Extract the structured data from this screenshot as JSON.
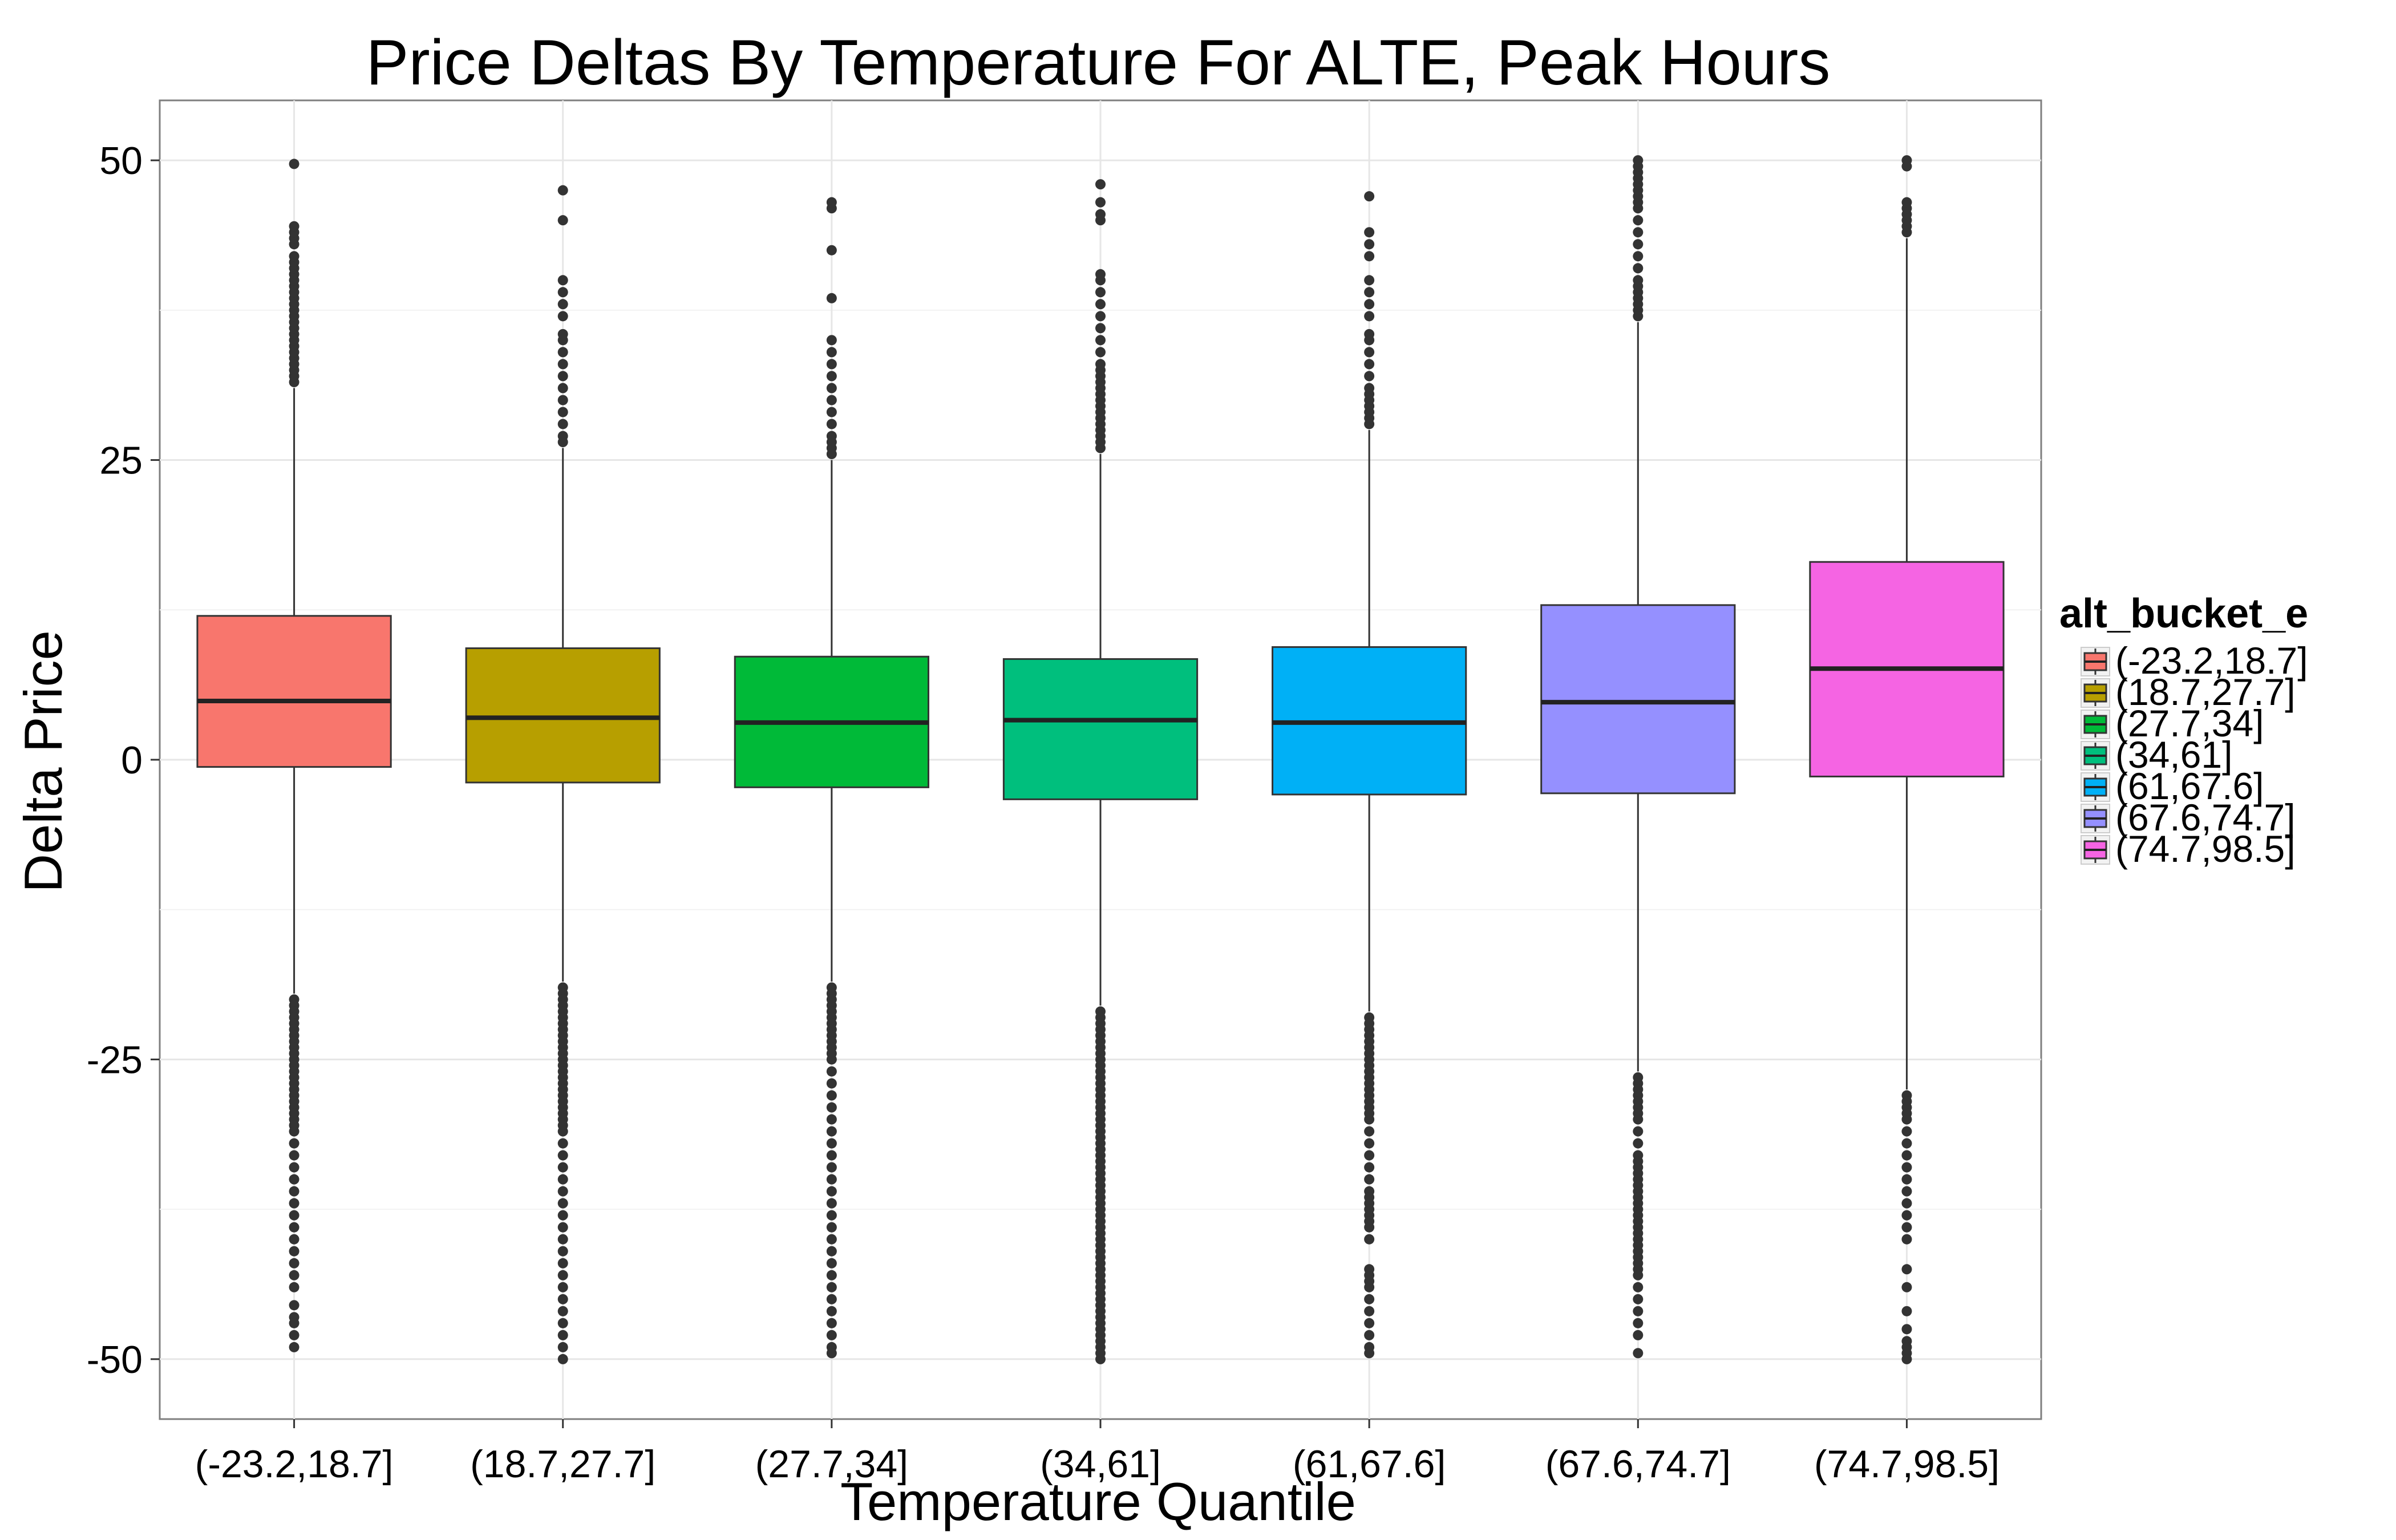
{
  "chart_data": {
    "type": "box",
    "title": "Price Deltas By Temperature For ALTE, Peak Hours",
    "xlabel": "Temperature Quantile",
    "ylabel": "Delta Price",
    "ylim": [
      -55,
      55
    ],
    "yticks": [
      50,
      25,
      0,
      -25,
      -50
    ],
    "grid": true,
    "legend": {
      "title": "alt_bucket_e",
      "position": "right"
    },
    "categories": [
      "(-23.2,18.7]",
      "(18.7,27.7]",
      "(27.7,34]",
      "(34,61]",
      "(61,67.6]",
      "(67.6,74.7]",
      "(74.7,98.5]"
    ],
    "colors": [
      "#F8766D",
      "#B79F00",
      "#00BA38",
      "#00BF7D",
      "#00B0F6",
      "#9590FF",
      "#F564E3"
    ],
    "boxes": [
      {
        "name": "(-23.2,18.7]",
        "whisker_low": -19.5,
        "q1": -0.6,
        "median": 4.9,
        "q3": 12.0,
        "whisker_high": 31.0,
        "outliers_high": [
          31.5,
          32,
          32.5,
          33,
          33.5,
          34,
          34.5,
          35,
          35.5,
          36,
          36.5,
          37,
          37.5,
          38,
          38.5,
          39,
          39.5,
          40,
          40.5,
          41,
          41.5,
          42,
          43,
          43.5,
          44,
          44.5,
          49.7
        ],
        "outliers_low": [
          -20,
          -20.5,
          -21,
          -21.5,
          -22,
          -22.5,
          -23,
          -23.5,
          -24,
          -24.5,
          -25,
          -25.5,
          -26,
          -26.5,
          -27,
          -27.5,
          -28,
          -28.5,
          -29,
          -29.5,
          -30,
          -30.5,
          -31,
          -32,
          -33,
          -34,
          -35,
          -36,
          -37,
          -38,
          -39,
          -40,
          -41,
          -42,
          -43,
          -44,
          -45.5,
          -46.5,
          -47,
          -48,
          -49
        ]
      },
      {
        "name": "(18.7,27.7]",
        "whisker_low": -18.5,
        "q1": -1.9,
        "median": 3.5,
        "q3": 9.3,
        "whisker_high": 26.0,
        "outliers_high": [
          26.5,
          27,
          28,
          29,
          30,
          31,
          32,
          33,
          34,
          35,
          35.5,
          37,
          38,
          39,
          40,
          45,
          47.5
        ],
        "outliers_low": [
          -19,
          -19.5,
          -20,
          -20.5,
          -21,
          -21.5,
          -22,
          -22.5,
          -23,
          -23.5,
          -24,
          -24.5,
          -25,
          -25.5,
          -26,
          -26.5,
          -27,
          -27.5,
          -28,
          -28.5,
          -29,
          -29.5,
          -30,
          -30.5,
          -31,
          -32,
          -33,
          -34,
          -35,
          -36,
          -37,
          -38,
          -39,
          -40,
          -41,
          -42,
          -43,
          -44,
          -45,
          -46,
          -47,
          -48,
          -49,
          -50
        ]
      },
      {
        "name": "(27.7,34]",
        "whisker_low": -18.5,
        "q1": -2.3,
        "median": 3.1,
        "q3": 8.6,
        "whisker_high": 25.0,
        "outliers_high": [
          25.5,
          26,
          26.5,
          27,
          28,
          29,
          30,
          31,
          32,
          33,
          34,
          35,
          38.5,
          42.5,
          46,
          46.5
        ],
        "outliers_low": [
          -19,
          -19.5,
          -20,
          -20.5,
          -21,
          -21.5,
          -22,
          -22.5,
          -23,
          -23.5,
          -24,
          -24.5,
          -25,
          -26,
          -27,
          -28,
          -29,
          -30,
          -31,
          -32,
          -33,
          -34,
          -35,
          -36,
          -37,
          -38,
          -39,
          -40,
          -41,
          -42,
          -43,
          -44,
          -45,
          -46,
          -47,
          -48,
          -49,
          -49.5
        ]
      },
      {
        "name": "(34,61]",
        "whisker_low": -20.5,
        "q1": -3.3,
        "median": 3.3,
        "q3": 8.4,
        "whisker_high": 25.5,
        "outliers_high": [
          26,
          26.5,
          27,
          27.5,
          28,
          28.5,
          29,
          29.5,
          30,
          30.5,
          31,
          31.5,
          32,
          32.5,
          33,
          34,
          35,
          36,
          37,
          38,
          39,
          40,
          40.5,
          45,
          45.5,
          46.5,
          48
        ],
        "outliers_low": [
          -21,
          -21.5,
          -22,
          -22.5,
          -23,
          -23.5,
          -24,
          -24.5,
          -25,
          -25.5,
          -26,
          -26.5,
          -27,
          -27.5,
          -28,
          -28.5,
          -29,
          -29.5,
          -30,
          -30.5,
          -31,
          -31.5,
          -32,
          -32.5,
          -33,
          -33.5,
          -34,
          -34.5,
          -35,
          -35.5,
          -36,
          -36.5,
          -37,
          -37.5,
          -38,
          -38.5,
          -39,
          -39.5,
          -40,
          -40.5,
          -41,
          -41.5,
          -42,
          -42.5,
          -43,
          -43.5,
          -44,
          -44.5,
          -45,
          -45.5,
          -46,
          -46.5,
          -47,
          -47.5,
          -48,
          -48.5,
          -49,
          -49.5,
          -50
        ]
      },
      {
        "name": "(61,67.6]",
        "whisker_low": -21.0,
        "q1": -2.9,
        "median": 3.1,
        "q3": 9.4,
        "whisker_high": 27.5,
        "outliers_high": [
          28,
          28.5,
          29,
          29.5,
          30,
          30.5,
          31,
          32,
          33,
          34,
          35,
          35.5,
          37,
          38,
          39,
          40,
          42,
          43,
          44,
          47
        ],
        "outliers_low": [
          -21.5,
          -22,
          -22.5,
          -23,
          -23.5,
          -24,
          -24.5,
          -25,
          -25.5,
          -26,
          -26.5,
          -27,
          -27.5,
          -28,
          -28.5,
          -29,
          -29.5,
          -30,
          -31,
          -32,
          -33,
          -34,
          -35,
          -36,
          -36.5,
          -37,
          -37.5,
          -38,
          -38.5,
          -39,
          -40,
          -42.5,
          -43,
          -43.5,
          -44,
          -45,
          -46,
          -47,
          -48,
          -49,
          -49.5
        ]
      },
      {
        "name": "(67.6,74.7]",
        "whisker_low": -26.0,
        "q1": -2.8,
        "median": 4.8,
        "q3": 12.9,
        "whisker_high": 36.5,
        "outliers_high": [
          37,
          37.5,
          38,
          38.5,
          39,
          39.5,
          40,
          41,
          42,
          43,
          44,
          45,
          46,
          46.5,
          47,
          47.5,
          48,
          48.5,
          49,
          49.5,
          50
        ],
        "outliers_low": [
          -26.5,
          -27,
          -27.5,
          -28,
          -28.5,
          -29,
          -29.5,
          -30,
          -31,
          -32,
          -33,
          -33.5,
          -34,
          -34.5,
          -35,
          -35.5,
          -36,
          -36.5,
          -37,
          -37.5,
          -38,
          -38.5,
          -39,
          -39.5,
          -40,
          -40.5,
          -41,
          -41.5,
          -42,
          -42.5,
          -43,
          -44,
          -45,
          -46,
          -47,
          -48,
          -49.5
        ]
      },
      {
        "name": "(74.7,98.5]",
        "whisker_low": -27.5,
        "q1": -1.4,
        "median": 7.6,
        "q3": 16.5,
        "whisker_high": 43.5,
        "outliers_high": [
          44,
          44.5,
          45,
          45.5,
          46,
          46.5,
          49.5,
          50
        ],
        "outliers_low": [
          -28,
          -28.5,
          -29,
          -29.5,
          -30,
          -31,
          -32,
          -33,
          -34,
          -35,
          -36,
          -37,
          -38,
          -39,
          -40,
          -42.5,
          -44,
          -46,
          -47.5,
          -48.5,
          -49,
          -49.5,
          -50
        ]
      }
    ]
  }
}
